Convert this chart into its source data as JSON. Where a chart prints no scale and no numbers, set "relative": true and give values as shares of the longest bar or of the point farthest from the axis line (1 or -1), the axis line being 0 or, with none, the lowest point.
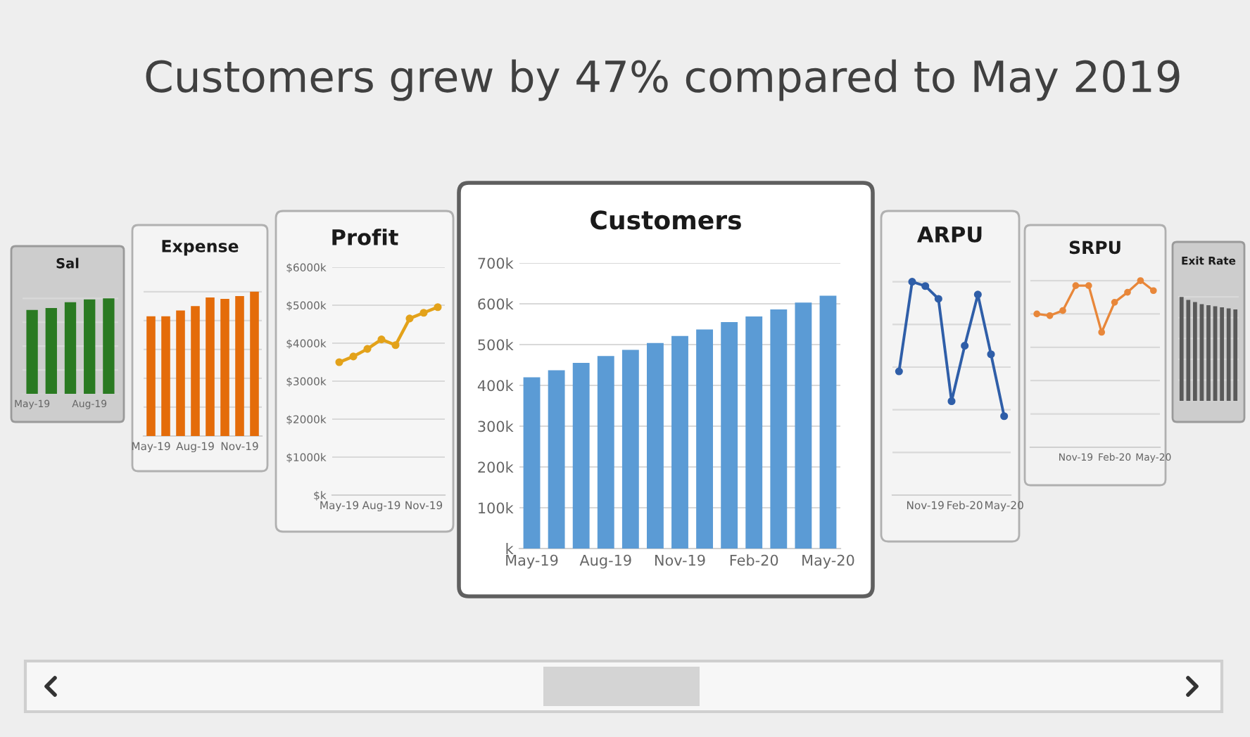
{
  "chart_data": [
    {
      "type": "other",
      "title": "Customers grew by 47% compared to May 2019"
    },
    {
      "type": "bar",
      "title": "Sal",
      "categories": [
        "May-19",
        null,
        null,
        "Aug-19",
        null
      ],
      "values": [
        0.88,
        0.9,
        0.96,
        0.99,
        1
      ],
      "color": "#2a7a22",
      "relative": true,
      "grid": "y"
    },
    {
      "type": "bar",
      "title": "Expense",
      "categories": [
        "May-19",
        null,
        null,
        "Aug-19",
        null,
        null,
        "Nov-19",
        null
      ],
      "values": [
        0.83,
        0.83,
        0.87,
        0.9,
        0.96,
        0.95,
        0.97,
        1
      ],
      "color": "#e46c0a",
      "relative": true,
      "grid": "y"
    },
    {
      "type": "line",
      "title": "Profit",
      "categories": [
        "May-19",
        null,
        null,
        "Aug-19",
        null,
        null,
        "Nov-19",
        null
      ],
      "values": [
        3500,
        3650,
        3850,
        4100,
        3950,
        4650,
        4800,
        4950
      ],
      "color": "#e3a21a",
      "marker": "circle",
      "ylim": [
        0,
        6000
      ],
      "yticks": [
        {
          "value": 0,
          "label": "$k"
        },
        {
          "value": 1000,
          "label": "$1000k"
        },
        {
          "value": 2000,
          "label": "$2000k"
        },
        {
          "value": 3000,
          "label": "$3000k"
        },
        {
          "value": 4000,
          "label": "$4000k"
        },
        {
          "value": 5000,
          "label": "$5000k"
        },
        {
          "value": 6000,
          "label": "$6000k"
        }
      ],
      "grid": "y"
    },
    {
      "type": "bar",
      "title": "Customers",
      "categories": [
        "May-19",
        null,
        null,
        "Aug-19",
        null,
        null,
        "Nov-19",
        null,
        null,
        "Feb-20",
        null,
        null,
        "May-20"
      ],
      "values": [
        420,
        437,
        455,
        472,
        487,
        504,
        521,
        537,
        555,
        569,
        586,
        603,
        620
      ],
      "color": "#5b9bd5",
      "ylim": [
        0,
        700
      ],
      "yticks": [
        {
          "value": 0,
          "label": "k"
        },
        {
          "value": 100,
          "label": "100k"
        },
        {
          "value": 200,
          "label": "200k"
        },
        {
          "value": 300,
          "label": "300k"
        },
        {
          "value": 400,
          "label": "400k"
        },
        {
          "value": 500,
          "label": "500k"
        },
        {
          "value": 600,
          "label": "600k"
        },
        {
          "value": 700,
          "label": "700k"
        }
      ],
      "grid": "y"
    },
    {
      "type": "line",
      "title": "ARPU",
      "categories": [
        null,
        null,
        "Nov-19",
        null,
        null,
        "Feb-20",
        null,
        null,
        "May-20"
      ],
      "values": [
        0.58,
        1,
        0.98,
        0.92,
        0.44,
        0.7,
        0.94,
        0.66,
        0.37
      ],
      "color": "#2f5ea8",
      "marker": "circle",
      "relative": true,
      "grid": "y"
    },
    {
      "type": "line",
      "title": "SRPU",
      "categories": [
        null,
        null,
        null,
        "Nov-19",
        null,
        null,
        "Feb-20",
        null,
        null,
        "May-20"
      ],
      "values": [
        0.8,
        0.79,
        0.82,
        0.97,
        0.97,
        0.69,
        0.87,
        0.93,
        1,
        0.94
      ],
      "color": "#e8873a",
      "marker": "circle",
      "relative": true,
      "grid": "y"
    },
    {
      "type": "bar",
      "title": "Exit Rate",
      "categories": [
        null,
        null,
        null,
        null,
        null,
        null,
        null,
        null,
        null
      ],
      "values": [
        1,
        0.97,
        0.95,
        0.93,
        0.92,
        0.91,
        0.9,
        0.89,
        0.88
      ],
      "color": "#5a5a5a",
      "relative": true,
      "grid": "y"
    }
  ]
}
